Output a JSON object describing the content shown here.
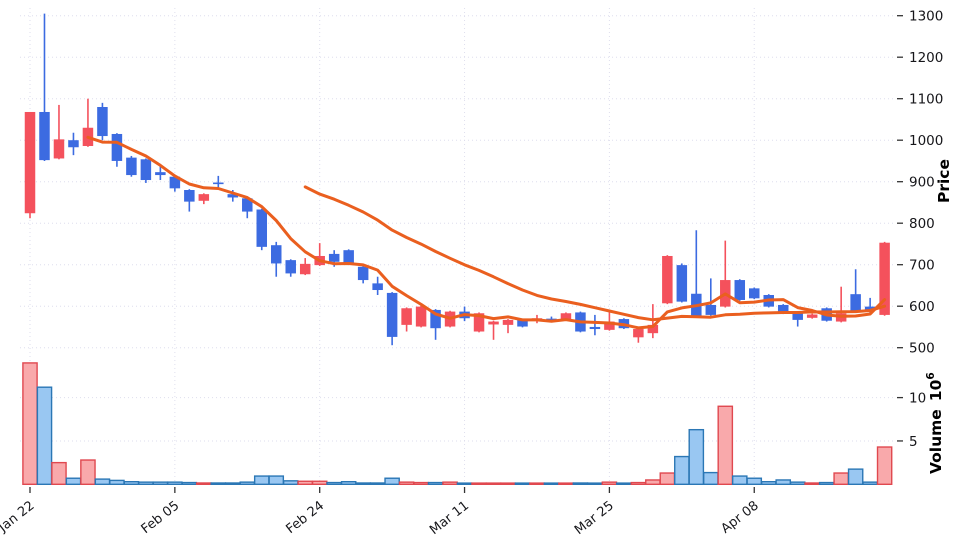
{
  "colors": {
    "up": "#f4515c",
    "down": "#3c6be1",
    "vol_up_fill": "#f9a9ab",
    "vol_up_edge": "#e0484f",
    "vol_down_fill": "#99c7f2",
    "vol_down_edge": "#2b77b5",
    "ma_line": "#ea5f1f",
    "grid": "#dedeed",
    "tick_mark": "#333333",
    "tick_text": "#16161a",
    "background": "#ffffff"
  },
  "price_axis": {
    "label": "Price",
    "ticks": [
      500,
      600,
      700,
      800,
      900,
      1000,
      1100,
      1200,
      1300
    ]
  },
  "volume_axis": {
    "label": "Volume",
    "base": "10",
    "exp": "6",
    "ticks_millions": [
      5,
      10
    ]
  },
  "x_axis": {
    "labels": [
      "Jan 22",
      "Feb 05",
      "Feb 24",
      "Mar 11",
      "Mar 25",
      "Apr 08"
    ],
    "label_candle_indices": [
      0,
      10,
      20,
      30,
      40,
      50
    ]
  },
  "chart_data": {
    "type": "candlestick_with_volume",
    "title": "",
    "price_ylim": [
      500,
      1300
    ],
    "price_yticks": [
      500,
      600,
      700,
      800,
      900,
      1000,
      1100,
      1200,
      1300
    ],
    "volume_yticks_millions": [
      5,
      10
    ],
    "volume_unit": "10^6",
    "color_convention": "red = up candle, blue = down candle",
    "x_tick_labels": [
      "Jan 22",
      "Feb 05",
      "Feb 24",
      "Mar 11",
      "Mar 25",
      "Apr 08"
    ],
    "x_tick_candle_indices": [
      0,
      10,
      20,
      30,
      40,
      50
    ],
    "grid": true,
    "legend": "none",
    "overlays": [
      {
        "name": "MA5",
        "window": 5,
        "color": "#ea5f1f"
      },
      {
        "name": "MA20",
        "window": 20,
        "color": "#ea5f1f"
      }
    ],
    "columns": [
      "open",
      "high",
      "low",
      "close",
      "volume_millions"
    ],
    "candles": [
      [
        824,
        1068,
        812,
        1068,
        14.0
      ],
      [
        1068,
        1305,
        950,
        952,
        11.2
      ],
      [
        956,
        1085,
        954,
        1002,
        2.5
      ],
      [
        1000,
        1018,
        964,
        983,
        0.7
      ],
      [
        986,
        1100,
        984,
        1030,
        2.8
      ],
      [
        1080,
        1090,
        1000,
        1010,
        0.6
      ],
      [
        1015,
        1017,
        936,
        950,
        0.45
      ],
      [
        958,
        962,
        912,
        916,
        0.3
      ],
      [
        954,
        956,
        897,
        904,
        0.25
      ],
      [
        923,
        940,
        904,
        916,
        0.25
      ],
      [
        912,
        914,
        876,
        884,
        0.25
      ],
      [
        880,
        882,
        828,
        852,
        0.2
      ],
      [
        854,
        872,
        846,
        870,
        0.15
      ],
      [
        898,
        914,
        886,
        896,
        0.15
      ],
      [
        870,
        880,
        852,
        862,
        0.15
      ],
      [
        860,
        862,
        812,
        828,
        0.25
      ],
      [
        833,
        835,
        735,
        743,
        0.95
      ],
      [
        747,
        755,
        671,
        703,
        0.95
      ],
      [
        711,
        713,
        671,
        679,
        0.4
      ],
      [
        677,
        716,
        675,
        702,
        0.35
      ],
      [
        699,
        752,
        697,
        721,
        0.35
      ],
      [
        726,
        735,
        695,
        707,
        0.2
      ],
      [
        735,
        737,
        700,
        705,
        0.3
      ],
      [
        695,
        697,
        655,
        663,
        0.15
      ],
      [
        655,
        671,
        627,
        639,
        0.15
      ],
      [
        632,
        634,
        506,
        526,
        0.7
      ],
      [
        555,
        597,
        539,
        595,
        0.25
      ],
      [
        551,
        601,
        549,
        599,
        0.2
      ],
      [
        591,
        593,
        519,
        547,
        0.2
      ],
      [
        551,
        589,
        549,
        587,
        0.25
      ],
      [
        587,
        599,
        564,
        571,
        0.1
      ],
      [
        539,
        585,
        537,
        583,
        0.08
      ],
      [
        556,
        565,
        519,
        563,
        0.08
      ],
      [
        555,
        569,
        535,
        567,
        0.08
      ],
      [
        567,
        569,
        549,
        551,
        0.08
      ],
      [
        569,
        579,
        559,
        571,
        0.05
      ],
      [
        570,
        575,
        561,
        567,
        0.05
      ],
      [
        567,
        585,
        565,
        583,
        0.1
      ],
      [
        585,
        587,
        537,
        539,
        0.15
      ],
      [
        550,
        579,
        530,
        545,
        0.1
      ],
      [
        543,
        591,
        541,
        563,
        0.25
      ],
      [
        569,
        571,
        545,
        547,
        0.1
      ],
      [
        525,
        548,
        512,
        545,
        0.2
      ],
      [
        535,
        605,
        523,
        555,
        0.5
      ],
      [
        607,
        723,
        605,
        721,
        1.3
      ],
      [
        699,
        703,
        609,
        611,
        3.2
      ],
      [
        630,
        783,
        572,
        574,
        6.3
      ],
      [
        603,
        667,
        577,
        579,
        1.35
      ],
      [
        599,
        758,
        597,
        663,
        9.0
      ],
      [
        663,
        665,
        613,
        615,
        0.95
      ],
      [
        643,
        645,
        617,
        619,
        0.7
      ],
      [
        627,
        629,
        597,
        599,
        0.3
      ],
      [
        603,
        605,
        581,
        583,
        0.5
      ],
      [
        585,
        587,
        551,
        567,
        0.25
      ],
      [
        572,
        582,
        570,
        580,
        0.15
      ],
      [
        595,
        597,
        563,
        565,
        0.2
      ],
      [
        563,
        647,
        561,
        583,
        1.3
      ],
      [
        629,
        689,
        585,
        587,
        1.75
      ],
      [
        599,
        620,
        583,
        591,
        0.25
      ],
      [
        579,
        755,
        577,
        753,
        4.3
      ]
    ]
  }
}
